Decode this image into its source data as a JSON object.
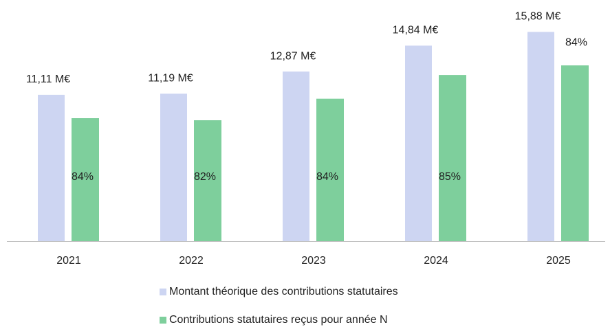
{
  "chart_data": {
    "type": "bar",
    "categories": [
      "2021",
      "2022",
      "2023",
      "2024",
      "2025"
    ],
    "series": [
      {
        "name": "Montant théorique des contributions statutaires",
        "color": "#cdd5f2",
        "values": [
          11.11,
          11.19,
          12.87,
          14.84,
          15.88
        ],
        "value_labels": [
          "11,11 M€",
          "11,19 M€",
          "12,87 M€",
          "14,84 M€",
          "15,88 M€"
        ]
      },
      {
        "name": "Contributions statutaires reçus pour année N",
        "color": "#7ecf9c",
        "values": [
          84,
          82,
          84,
          85,
          84
        ],
        "value_labels": [
          "84%",
          "82%",
          "84%",
          "85%",
          "84%"
        ]
      }
    ],
    "ylim": [
      0,
      17
    ]
  }
}
